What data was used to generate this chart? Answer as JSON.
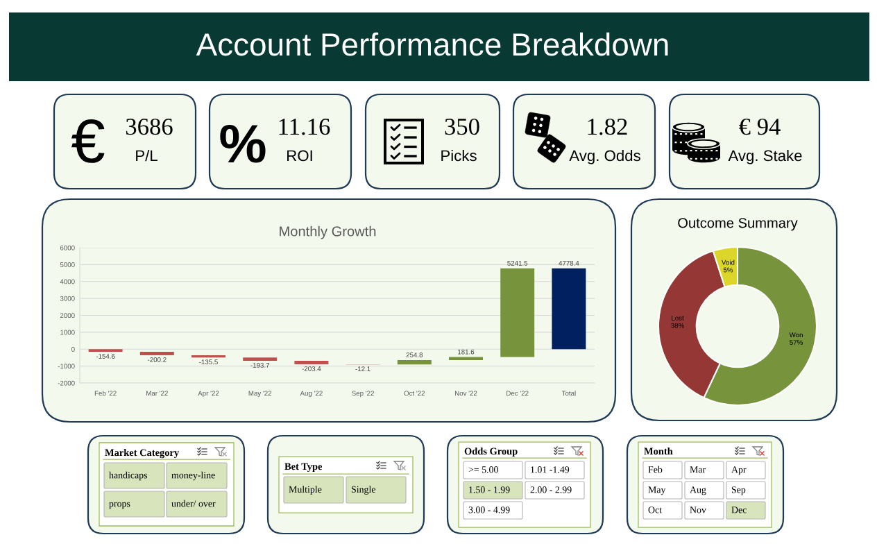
{
  "chart_data": [
    {
      "type": "other",
      "title": "Account Performance Breakdown"
    },
    {
      "type": "other",
      "title": "3686",
      "subtitle": "P/L",
      "annotations": [
        "€"
      ]
    },
    {
      "type": "other",
      "title": "11.16",
      "subtitle": "ROI",
      "annotations": [
        "%"
      ]
    },
    {
      "type": "other",
      "title": "350",
      "subtitle": "Picks"
    },
    {
      "type": "other",
      "title": "1.82",
      "subtitle": "Avg. Odds"
    },
    {
      "type": "other",
      "title": "€ 94",
      "subtitle": "Avg. Stake"
    },
    {
      "type": "bar",
      "title": "Monthly Growth",
      "categories": [
        "Feb '22",
        "Mar '22",
        "Apr '22",
        "May '22",
        "Aug '22",
        "Sep '22",
        "Oct '22",
        "Nov '22",
        "Dec '22",
        "Total"
      ],
      "values": [
        -154.6,
        -200.2,
        -135.5,
        -193.7,
        -203.4,
        -12.1,
        254.8,
        181.6,
        5241.5,
        4778.4
      ],
      "base": [
        0,
        -154.6,
        -354.8,
        -490.3,
        -684.0,
        -887.4,
        -899.5,
        -644.7,
        -463.1,
        0
      ],
      "colors": [
        "#c0504d",
        "#c0504d",
        "#c0504d",
        "#c0504d",
        "#c0504d",
        "#c0504d",
        "#77933c",
        "#77933c",
        "#77933c",
        "#002060"
      ],
      "ylim": [
        -2000,
        6000
      ],
      "yticks": [
        -2000,
        -1000,
        0,
        1000,
        2000,
        3000,
        4000,
        5000,
        6000
      ],
      "grid": "y",
      "data_labels": true
    },
    {
      "type": "donut",
      "title": "Outcome Summary",
      "categories": [
        "Won",
        "Lost",
        "Void"
      ],
      "values": [
        57,
        38,
        5
      ],
      "value_labels": [
        "57%",
        "38%",
        "5%"
      ],
      "colors": [
        "#77933c",
        "#953735",
        "#dcd62a"
      ]
    },
    {
      "type": "other",
      "title": "Market Category",
      "categories": [
        "handicaps",
        "money-line",
        "props",
        "under/ over"
      ],
      "colors": [
        "#d8e4bc",
        "#d8e4bc",
        "#d8e4bc",
        "#d8e4bc"
      ]
    },
    {
      "type": "other",
      "title": "Bet Type",
      "categories": [
        "Multiple",
        "Single"
      ],
      "colors": [
        "#d8e4bc",
        "#d8e4bc"
      ]
    },
    {
      "type": "other",
      "title": "Odds Group",
      "categories": [
        ">= 5.00",
        "1.01 -1.49",
        "1.50 - 1.99",
        "2.00 - 2.99",
        "3.00 - 4.99"
      ],
      "colors": [
        "#ffffff",
        "#ffffff",
        "#d8e4bc",
        "#ffffff",
        "#ffffff"
      ]
    },
    {
      "type": "other",
      "title": "Month",
      "categories": [
        "Feb",
        "Mar",
        "Apr",
        "May",
        "Aug",
        "Sep",
        "Oct",
        "Nov",
        "Dec"
      ],
      "colors": [
        "#ffffff",
        "#ffffff",
        "#ffffff",
        "#ffffff",
        "#ffffff",
        "#ffffff",
        "#ffffff",
        "#ffffff",
        "#d8e4bc"
      ]
    }
  ]
}
